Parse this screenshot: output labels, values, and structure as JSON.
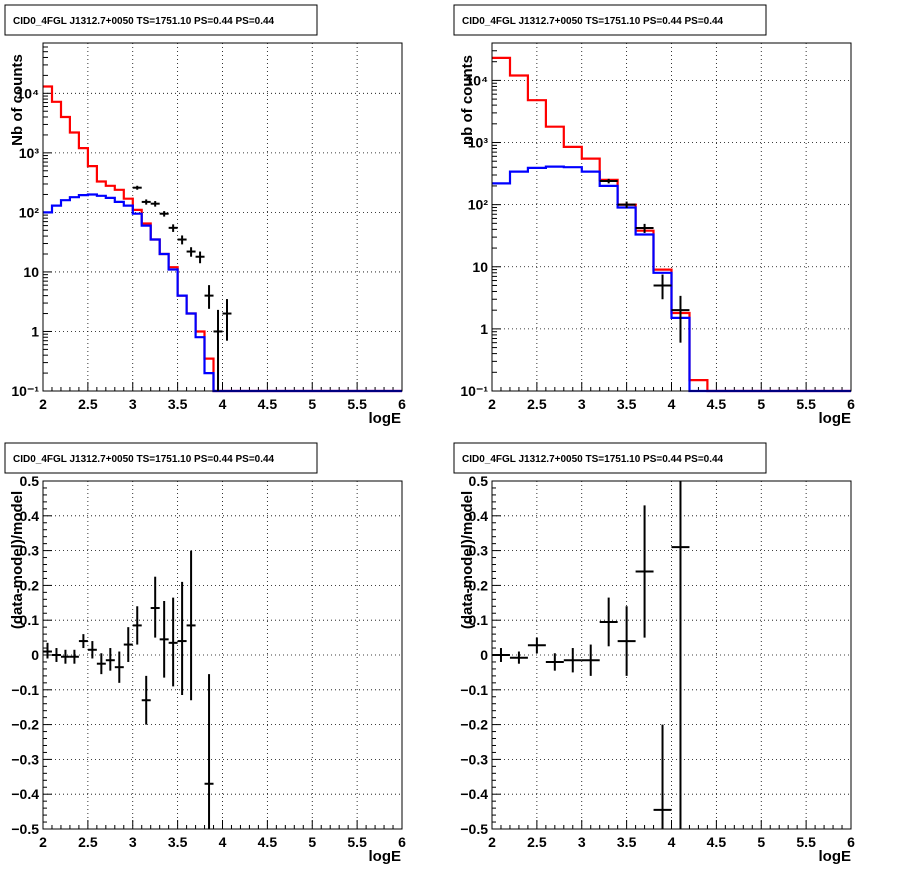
{
  "chart_data": [
    {
      "type": "histogram",
      "title": "CID0_4FGL J1312.7+0050 TS=1751.10 PS=0.44 PS=0.44",
      "xlabel": "logE",
      "ylabel": "Nb of counts",
      "xlim": [
        2,
        6
      ],
      "ylim": [
        0.1,
        70000
      ],
      "yscale": "log",
      "grid": true,
      "x_ticks": [
        "2",
        "2.5",
        "3",
        "3.5",
        "4",
        "4.5",
        "5",
        "5.5",
        "6"
      ],
      "y_ticks": [
        "10⁻¹",
        "1",
        "10",
        "10²",
        "10³",
        "10⁴"
      ],
      "bin_edges": [
        2.0,
        2.1,
        2.2,
        2.3,
        2.4,
        2.5,
        2.6,
        2.7,
        2.8,
        2.9,
        3.0,
        3.1,
        3.2,
        3.3,
        3.4,
        3.5,
        3.6,
        3.7,
        3.8,
        3.9,
        4.0,
        4.1,
        4.2,
        4.3,
        4.4,
        4.5,
        4.6,
        4.7,
        4.8,
        4.9,
        5.0,
        5.1,
        5.2,
        5.3,
        5.4,
        5.5,
        5.6,
        5.7,
        5.8,
        5.9,
        6.0
      ],
      "series": [
        {
          "color": "#ff0000",
          "style": "step",
          "values": [
            13000,
            7200,
            4000,
            2200,
            1200,
            600,
            330,
            280,
            240,
            170,
            110,
            65,
            35,
            20,
            12,
            4,
            2,
            1,
            0.35,
            0.1,
            0.1,
            0.1,
            0.1,
            0.1,
            0.1,
            0.1,
            0.1,
            0.1,
            0.1,
            0.1,
            0.1,
            0.1,
            0.1,
            0.1,
            0.1,
            0.1,
            0.1,
            0.1,
            0.1,
            0.1
          ]
        },
        {
          "color": "#0000ff",
          "style": "step",
          "values": [
            100,
            130,
            160,
            180,
            195,
            200,
            190,
            175,
            150,
            130,
            95,
            60,
            35,
            20,
            11,
            4,
            2,
            0.8,
            0.2,
            0.1,
            0.1,
            0.1,
            0.1,
            0.1,
            0.1,
            0.1,
            0.1,
            0.1,
            0.1,
            0.1,
            0.1,
            0.1,
            0.1,
            0.1,
            0.1,
            0.1,
            0.1,
            0.1,
            0.1,
            0.1
          ]
        },
        {
          "color": "#000000",
          "style": "points",
          "points": [
            {
              "x": 3.05,
              "y": 260,
              "ylo": 240,
              "yhi": 280
            },
            {
              "x": 3.15,
              "y": 150,
              "ylo": 135,
              "yhi": 165
            },
            {
              "x": 3.25,
              "y": 140,
              "ylo": 125,
              "yhi": 155
            },
            {
              "x": 3.35,
              "y": 95,
              "ylo": 85,
              "yhi": 105
            },
            {
              "x": 3.45,
              "y": 55,
              "ylo": 47,
              "yhi": 63
            },
            {
              "x": 3.55,
              "y": 35,
              "ylo": 29,
              "yhi": 41
            },
            {
              "x": 3.65,
              "y": 22,
              "ylo": 18,
              "yhi": 26
            },
            {
              "x": 3.75,
              "y": 18,
              "ylo": 14,
              "yhi": 22
            },
            {
              "x": 3.85,
              "y": 4,
              "ylo": 2.4,
              "yhi": 6
            },
            {
              "x": 3.95,
              "y": 1,
              "ylo": 0.1,
              "yhi": 2.3
            },
            {
              "x": 4.05,
              "y": 2,
              "ylo": 0.7,
              "yhi": 3.5
            }
          ]
        }
      ]
    },
    {
      "type": "histogram",
      "title": "CID0_4FGL J1312.7+0050 TS=1751.10 PS=0.44 PS=0.44",
      "xlabel": "logE",
      "ylabel": "nb of counts",
      "xlim": [
        2,
        6
      ],
      "ylim": [
        0.1,
        40000
      ],
      "yscale": "log",
      "grid": true,
      "x_ticks": [
        "2",
        "2.5",
        "3",
        "3.5",
        "4",
        "4.5",
        "5",
        "5.5",
        "6"
      ],
      "y_ticks": [
        "10⁻¹",
        "1",
        "10",
        "10²",
        "10³",
        "10⁴"
      ],
      "bin_edges": [
        2.0,
        2.2,
        2.4,
        2.6,
        2.8,
        3.0,
        3.2,
        3.4,
        3.6,
        3.8,
        4.0,
        4.2,
        4.4,
        4.6,
        4.8,
        5.0,
        5.2,
        5.4,
        5.6,
        5.8,
        6.0
      ],
      "series": [
        {
          "color": "#ff0000",
          "style": "step",
          "values": [
            23000,
            12000,
            4800,
            1800,
            850,
            550,
            250,
            100,
            38,
            9,
            1.8,
            0.15,
            0.1,
            0.1,
            0.1,
            0.1,
            0.1,
            0.1,
            0.1,
            0.1
          ]
        },
        {
          "color": "#0000ff",
          "style": "step",
          "values": [
            220,
            340,
            390,
            410,
            400,
            340,
            200,
            90,
            33,
            8,
            1.5,
            0.1,
            0.1,
            0.1,
            0.1,
            0.1,
            0.1,
            0.1,
            0.1,
            0.1
          ]
        },
        {
          "color": "#000000",
          "style": "points",
          "points": [
            {
              "x": 3.3,
              "y": 240,
              "ylo": 220,
              "yhi": 260
            },
            {
              "x": 3.5,
              "y": 100,
              "ylo": 88,
              "yhi": 112
            },
            {
              "x": 3.7,
              "y": 42,
              "ylo": 35,
              "yhi": 49
            },
            {
              "x": 3.9,
              "y": 5,
              "ylo": 3,
              "yhi": 7.5
            },
            {
              "x": 4.1,
              "y": 2,
              "ylo": 0.6,
              "yhi": 3.4
            }
          ]
        }
      ]
    },
    {
      "type": "scatter",
      "title": "CID0_4FGL J1312.7+0050 TS=1751.10 PS=0.44 PS=0.44",
      "xlabel": "logE",
      "ylabel": "(data-model)/model",
      "xlim": [
        2,
        6
      ],
      "ylim": [
        -0.5,
        0.5
      ],
      "grid": true,
      "x_ticks": [
        "2",
        "2.5",
        "3",
        "3.5",
        "4",
        "4.5",
        "5",
        "5.5",
        "6"
      ],
      "y_ticks": [
        "−0.5",
        "−0.4",
        "−0.3",
        "−0.2",
        "−0.1",
        "0",
        "0.1",
        "0.2",
        "0.3",
        "0.4",
        "0.5"
      ],
      "series": [
        {
          "color": "#000000",
          "points": [
            {
              "x": 2.05,
              "y": 0.01,
              "xerr": 0.05,
              "ylo": -0.01,
              "yhi": 0.035
            },
            {
              "x": 2.15,
              "y": 0.0,
              "xerr": 0.05,
              "ylo": -0.02,
              "yhi": 0.02
            },
            {
              "x": 2.25,
              "y": -0.005,
              "xerr": 0.05,
              "ylo": -0.025,
              "yhi": 0.015
            },
            {
              "x": 2.35,
              "y": -0.005,
              "xerr": 0.05,
              "ylo": -0.025,
              "yhi": 0.015
            },
            {
              "x": 2.45,
              "y": 0.04,
              "xerr": 0.05,
              "ylo": 0.02,
              "yhi": 0.06
            },
            {
              "x": 2.55,
              "y": 0.015,
              "xerr": 0.05,
              "ylo": -0.01,
              "yhi": 0.04
            },
            {
              "x": 2.65,
              "y": -0.025,
              "xerr": 0.05,
              "ylo": -0.055,
              "yhi": 0.005
            },
            {
              "x": 2.75,
              "y": -0.015,
              "xerr": 0.05,
              "ylo": -0.045,
              "yhi": 0.02
            },
            {
              "x": 2.85,
              "y": -0.035,
              "xerr": 0.05,
              "ylo": -0.08,
              "yhi": 0.01
            },
            {
              "x": 2.95,
              "y": 0.03,
              "xerr": 0.05,
              "ylo": -0.02,
              "yhi": 0.08
            },
            {
              "x": 3.05,
              "y": 0.085,
              "xerr": 0.05,
              "ylo": 0.03,
              "yhi": 0.14
            },
            {
              "x": 3.15,
              "y": -0.13,
              "xerr": 0.05,
              "ylo": -0.2,
              "yhi": -0.06
            },
            {
              "x": 3.25,
              "y": 0.135,
              "xerr": 0.05,
              "ylo": 0.05,
              "yhi": 0.225
            },
            {
              "x": 3.35,
              "y": 0.045,
              "xerr": 0.05,
              "ylo": -0.065,
              "yhi": 0.155
            },
            {
              "x": 3.45,
              "y": 0.035,
              "xerr": 0.05,
              "ylo": -0.09,
              "yhi": 0.165
            },
            {
              "x": 3.55,
              "y": 0.04,
              "xerr": 0.05,
              "ylo": -0.115,
              "yhi": 0.21
            },
            {
              "x": 3.65,
              "y": 0.085,
              "xerr": 0.05,
              "ylo": -0.13,
              "yhi": 0.3
            },
            {
              "x": 3.85,
              "y": -0.37,
              "xerr": 0.05,
              "ylo": -0.5,
              "yhi": -0.055
            }
          ]
        }
      ]
    },
    {
      "type": "scatter",
      "title": "CID0_4FGL J1312.7+0050 TS=1751.10 PS=0.44 PS=0.44",
      "xlabel": "logE",
      "ylabel": "(data-model)/model",
      "xlim": [
        2,
        6
      ],
      "ylim": [
        -0.5,
        0.5
      ],
      "grid": true,
      "x_ticks": [
        "2",
        "2.5",
        "3",
        "3.5",
        "4",
        "4.5",
        "5",
        "5.5",
        "6"
      ],
      "y_ticks": [
        "−0.5",
        "−0.4",
        "−0.3",
        "−0.2",
        "−0.1",
        "0",
        "0.1",
        "0.2",
        "0.3",
        "0.4",
        "0.5"
      ],
      "series": [
        {
          "color": "#000000",
          "points": [
            {
              "x": 2.1,
              "y": 0.0,
              "xerr": 0.1,
              "ylo": -0.02,
              "yhi": 0.02
            },
            {
              "x": 2.3,
              "y": -0.008,
              "xerr": 0.1,
              "ylo": -0.025,
              "yhi": 0.01
            },
            {
              "x": 2.5,
              "y": 0.028,
              "xerr": 0.1,
              "ylo": 0.005,
              "yhi": 0.05
            },
            {
              "x": 2.7,
              "y": -0.02,
              "xerr": 0.1,
              "ylo": -0.045,
              "yhi": 0.005
            },
            {
              "x": 2.9,
              "y": -0.015,
              "xerr": 0.1,
              "ylo": -0.05,
              "yhi": 0.02
            },
            {
              "x": 3.1,
              "y": -0.015,
              "xerr": 0.1,
              "ylo": -0.06,
              "yhi": 0.03
            },
            {
              "x": 3.3,
              "y": 0.095,
              "xerr": 0.1,
              "ylo": 0.025,
              "yhi": 0.165
            },
            {
              "x": 3.5,
              "y": 0.04,
              "xerr": 0.1,
              "ylo": -0.06,
              "yhi": 0.14
            },
            {
              "x": 3.7,
              "y": 0.24,
              "xerr": 0.1,
              "ylo": 0.05,
              "yhi": 0.43
            },
            {
              "x": 3.9,
              "y": -0.445,
              "xerr": 0.1,
              "ylo": -0.5,
              "yhi": -0.2
            },
            {
              "x": 4.1,
              "y": 0.31,
              "xerr": 0.1,
              "ylo": -0.5,
              "yhi": 0.5
            }
          ]
        }
      ]
    }
  ]
}
